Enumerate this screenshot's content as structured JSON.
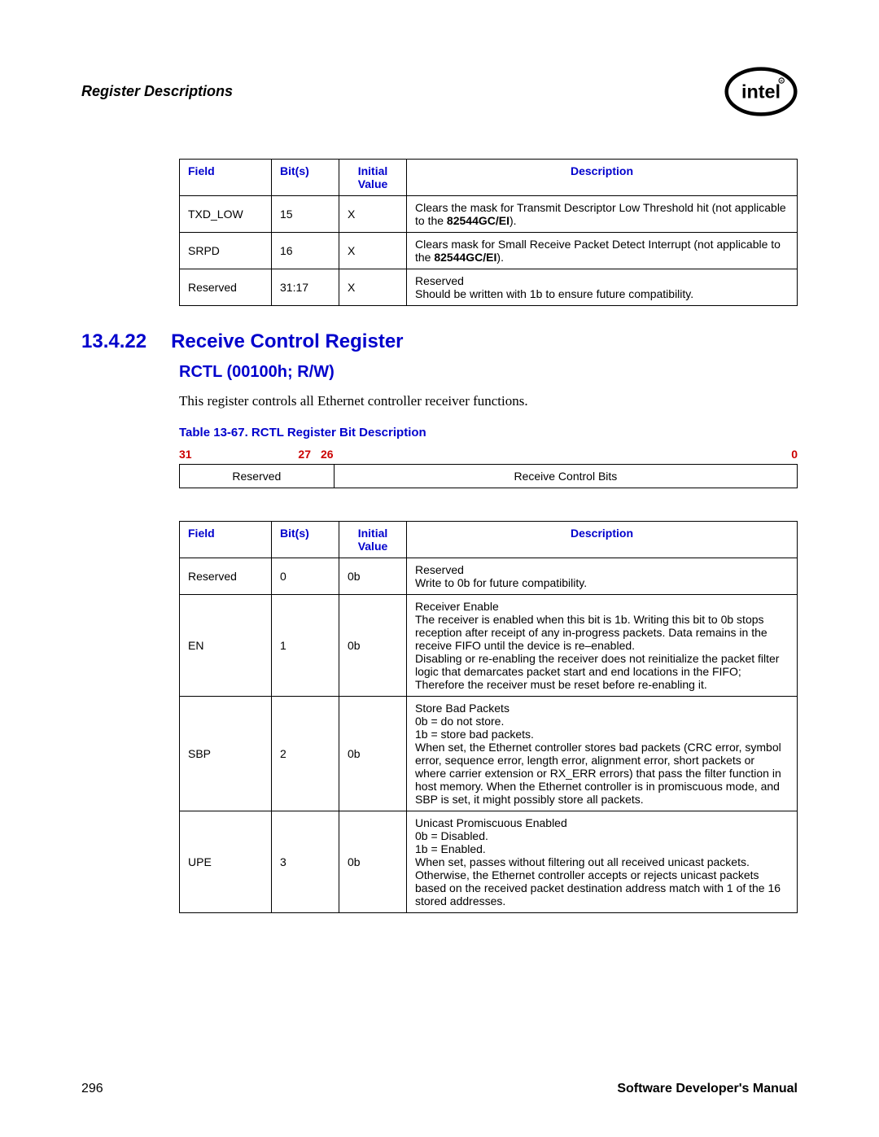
{
  "header": {
    "title": "Register Descriptions",
    "logo_alt": "intel"
  },
  "table1": {
    "headers": {
      "field": "Field",
      "bits": "Bit(s)",
      "initial": "Initial Value",
      "desc": "Description"
    },
    "rows": [
      {
        "field": "TXD_LOW",
        "bits": "15",
        "init": "X",
        "desc": "Clears the mask for Transmit Descriptor Low Threshold hit (not applicable to the 82544GC/EI)."
      },
      {
        "field": "SRPD",
        "bits": "16",
        "init": "X",
        "desc": "Clears mask for Small Receive Packet Detect Interrupt (not applicable to the 82544GC/EI)."
      },
      {
        "field": "Reserved",
        "bits": "31:17",
        "init": "X",
        "desc": "Reserved\nShould be written with 1b to ensure future compatibility."
      }
    ]
  },
  "section": {
    "num": "13.4.22",
    "title": "Receive Control Register",
    "sub": "RCTL (00100h; R/W)",
    "body": "This register controls all Ethernet controller receiver functions.",
    "table_caption": "Table 13-67. RCTL Register Bit Description"
  },
  "bitlayout": {
    "n31": "31",
    "n27": "27",
    "n26": "26",
    "n0": "0",
    "left": "Reserved",
    "right": "Receive Control Bits"
  },
  "table2": {
    "headers": {
      "field": "Field",
      "bits": "Bit(s)",
      "initial": "Initial Value",
      "desc": "Description"
    },
    "rows": [
      {
        "field": "Reserved",
        "bits": "0",
        "init": "0b",
        "desc": "Reserved\nWrite to 0b for future compatibility."
      },
      {
        "field": "EN",
        "bits": "1",
        "init": "0b",
        "desc": "Receiver Enable\nThe receiver is enabled when this bit is 1b. Writing this bit to 0b stops reception after receipt of any in-progress packets. Data remains in the receive FIFO until the device is re–enabled.\nDisabling or re-enabling the receiver does not reinitialize the packet filter logic that demarcates packet start and end locations in the FIFO; Therefore the receiver must be reset before re-enabling it."
      },
      {
        "field": "SBP",
        "bits": "2",
        "init": "0b",
        "desc": "Store Bad Packets\n0b = do not store.\n1b = store bad packets.\nWhen set, the Ethernet controller stores bad packets (CRC error, symbol error, sequence error, length error, alignment error, short packets or where carrier extension or RX_ERR errors) that pass the filter function in host memory. When the Ethernet controller is in promiscuous mode, and SBP is set, it might possibly store all packets."
      },
      {
        "field": "UPE",
        "bits": "3",
        "init": "0b",
        "desc": "Unicast Promiscuous Enabled\n0b = Disabled.\n1b = Enabled.\nWhen set, passes without filtering out all received unicast packets. Otherwise, the Ethernet controller accepts or rejects unicast packets based on the received packet destination address match with 1 of the 16 stored addresses."
      }
    ]
  },
  "footer": {
    "page": "296",
    "manual": "Software Developer's Manual"
  },
  "colors": {
    "blue": "#0000cc",
    "red": "#cc0000"
  }
}
